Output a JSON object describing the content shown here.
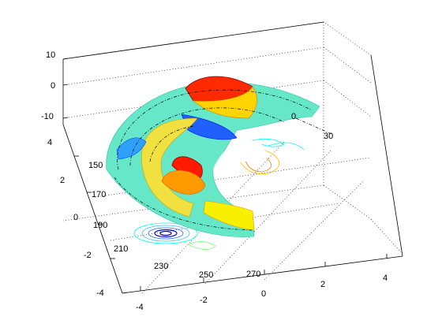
{
  "chart_data": {
    "type": "surface",
    "title": "",
    "xlabel": "",
    "ylabel": "",
    "zlabel": "",
    "grid": true,
    "colormap": "jet",
    "contour_projection": true,
    "x_ticks": [
      "-4",
      "-2",
      "0",
      "2",
      "4"
    ],
    "y_ticks": [
      "-4",
      "-2",
      "0",
      "2",
      "4"
    ],
    "z_ticks": [
      "10",
      "0",
      "-10"
    ],
    "xlim": [
      -4,
      4
    ],
    "ylim": [
      -4,
      4
    ],
    "zlim": [
      -10,
      10
    ],
    "polar_angle_labels": [
      "30",
      "0",
      "150",
      "170",
      "190",
      "210",
      "230",
      "250",
      "270"
    ],
    "colors": {
      "low": "#0000ff",
      "mid": "#00ffff",
      "base": "#66e8c8",
      "high": "#ffff00",
      "peak": "#ff0000",
      "max": "#8b0000"
    }
  }
}
